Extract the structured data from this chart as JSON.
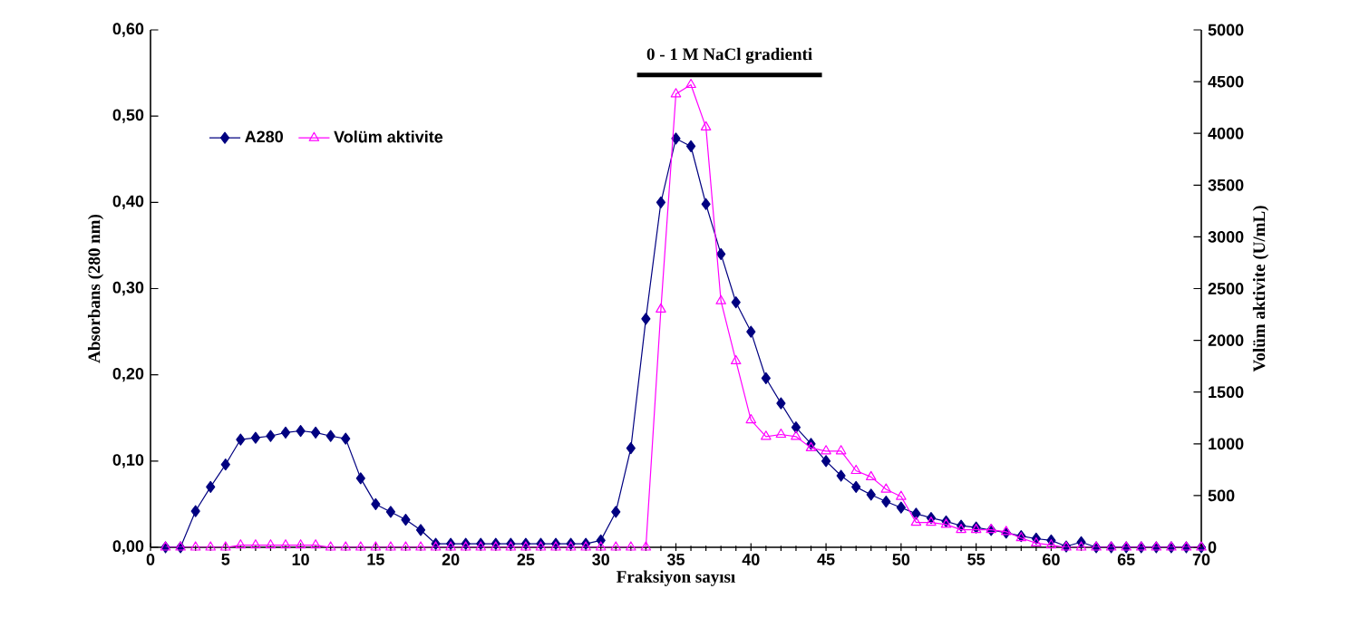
{
  "chart_data": {
    "type": "line",
    "xlabel": "Fraksiyon sayısı",
    "ylabel": "Absorbans  (280 nm)",
    "y2label": "Volüm aktivite (U/mL)",
    "x": [
      1,
      2,
      3,
      4,
      5,
      6,
      7,
      8,
      9,
      10,
      11,
      12,
      13,
      14,
      15,
      16,
      17,
      18,
      19,
      20,
      21,
      22,
      23,
      24,
      25,
      26,
      27,
      28,
      29,
      30,
      31,
      32,
      33,
      34,
      35,
      36,
      37,
      38,
      39,
      40,
      41,
      42,
      43,
      44,
      45,
      46,
      47,
      48,
      49,
      50,
      51,
      52,
      53,
      54,
      55,
      56,
      57,
      58,
      59,
      60,
      61,
      62,
      63,
      64,
      65,
      66,
      67,
      68,
      69,
      70
    ],
    "series": [
      {
        "name": "A280",
        "color": "#000080",
        "marker": "diamond",
        "values": [
          0,
          0,
          0.042,
          0.07,
          0.096,
          0.125,
          0.127,
          0.129,
          0.133,
          0.135,
          0.133,
          0.129,
          0.126,
          0.08,
          0.05,
          0.041,
          0.032,
          0.02,
          0.004,
          0.004,
          0.004,
          0.004,
          0.004,
          0.004,
          0.004,
          0.004,
          0.004,
          0.004,
          0.004,
          0.008,
          0.041,
          0.115,
          0.265,
          0.4,
          0.474,
          0.465,
          0.398,
          0.34,
          0.284,
          0.25,
          0.196,
          0.167,
          0.139,
          0.12,
          0.1,
          0.083,
          0.07,
          0.061,
          0.053,
          0.046,
          0.039,
          0.034,
          0.03,
          0.025,
          0.023,
          0.02,
          0.017,
          0.013,
          0.01,
          0.008,
          0.001,
          0.006,
          0,
          0,
          0,
          0,
          0,
          0,
          0,
          0
        ]
      },
      {
        "name": "Volüm aktivite",
        "color": "#ff00ff",
        "marker": "triangle",
        "axis": "y2",
        "values": [
          0,
          0,
          0,
          0,
          0,
          20,
          20,
          20,
          20,
          20,
          20,
          0,
          0,
          0,
          0,
          0,
          0,
          0,
          0,
          0,
          0,
          0,
          0,
          0,
          0,
          0,
          0,
          0,
          0,
          0,
          0,
          0,
          0,
          2300,
          4380,
          4470,
          4060,
          2380,
          1800,
          1230,
          1070,
          1090,
          1070,
          960,
          930,
          930,
          740,
          680,
          560,
          490,
          240,
          240,
          220,
          170,
          170,
          170,
          150,
          90,
          40,
          20,
          0,
          0,
          0,
          0,
          0,
          0,
          0,
          0,
          0,
          0
        ]
      }
    ],
    "xlim": [
      0,
      70
    ],
    "xticks": [
      0,
      5,
      10,
      15,
      20,
      25,
      30,
      35,
      40,
      45,
      50,
      55,
      60,
      65,
      70
    ],
    "ylim": [
      0,
      0.6
    ],
    "yticks": [
      {
        "value": 0,
        "label": "0,00"
      },
      {
        "value": 0.1,
        "label": "0,10"
      },
      {
        "value": 0.2,
        "label": "0,20"
      },
      {
        "value": 0.3,
        "label": "0,30"
      },
      {
        "value": 0.4,
        "label": "0,40"
      },
      {
        "value": 0.5,
        "label": "0,50"
      },
      {
        "value": 0.6,
        "label": "0,60"
      }
    ],
    "y2lim": [
      0,
      5000
    ],
    "y2ticks": [
      0,
      500,
      1000,
      1500,
      2000,
      2500,
      3000,
      3500,
      4000,
      4500,
      5000
    ],
    "annotations": [
      "0 - 1 M  NaCl gradienti"
    ],
    "legend": "top left",
    "grid": false
  }
}
